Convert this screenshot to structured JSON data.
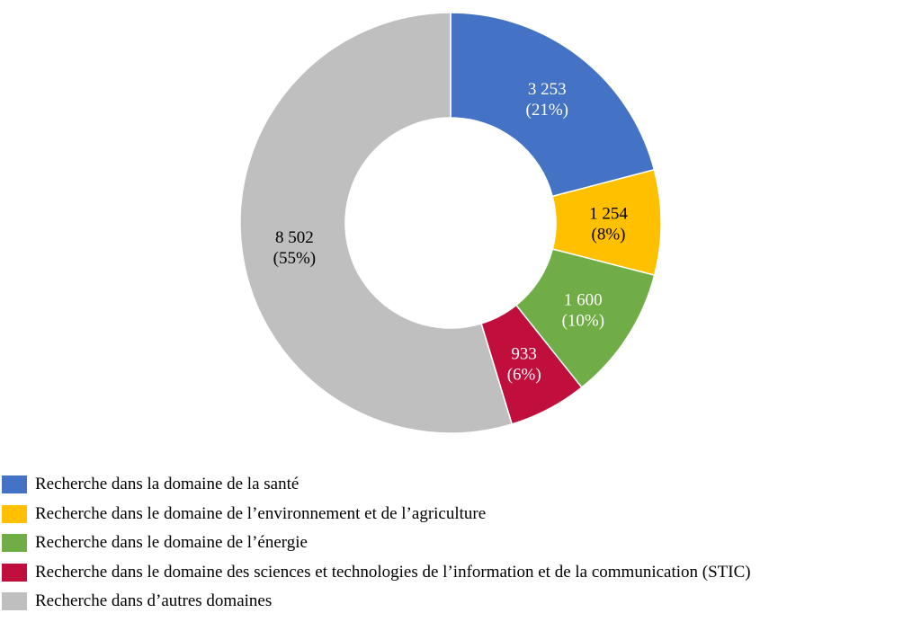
{
  "chart_data": {
    "type": "pie",
    "donut": true,
    "title": "",
    "slices": [
      {
        "name": "Recherche dans la domaine de la santé",
        "value": 3253,
        "value_label": "3 253",
        "percent_label": "(21%)",
        "color": "#4472C4",
        "label_color": "#ffffff"
      },
      {
        "name": "Recherche dans le domaine de l’environnement et de l’agriculture",
        "value": 1254,
        "value_label": "1 254",
        "percent_label": "(8%)",
        "color": "#FFC000",
        "label_color": "#000000"
      },
      {
        "name": "Recherche dans le domaine de l’énergie",
        "value": 1600,
        "value_label": "1 600",
        "percent_label": "(10%)",
        "color": "#70AD47",
        "label_color": "#ffffff"
      },
      {
        "name": "Recherche dans le domaine des sciences et technologies de l’information et de la communication (STIC)",
        "value": 933,
        "value_label": "933",
        "percent_label": "(6%)",
        "color": "#C00F3C",
        "label_color": "#ffffff"
      },
      {
        "name": "Recherche dans d’autres domaines",
        "value": 8502,
        "value_label": "8 502",
        "percent_label": "(55%)",
        "color": "#BFBFBF",
        "label_color": "#000000"
      }
    ],
    "legend_position": "bottom-left"
  }
}
